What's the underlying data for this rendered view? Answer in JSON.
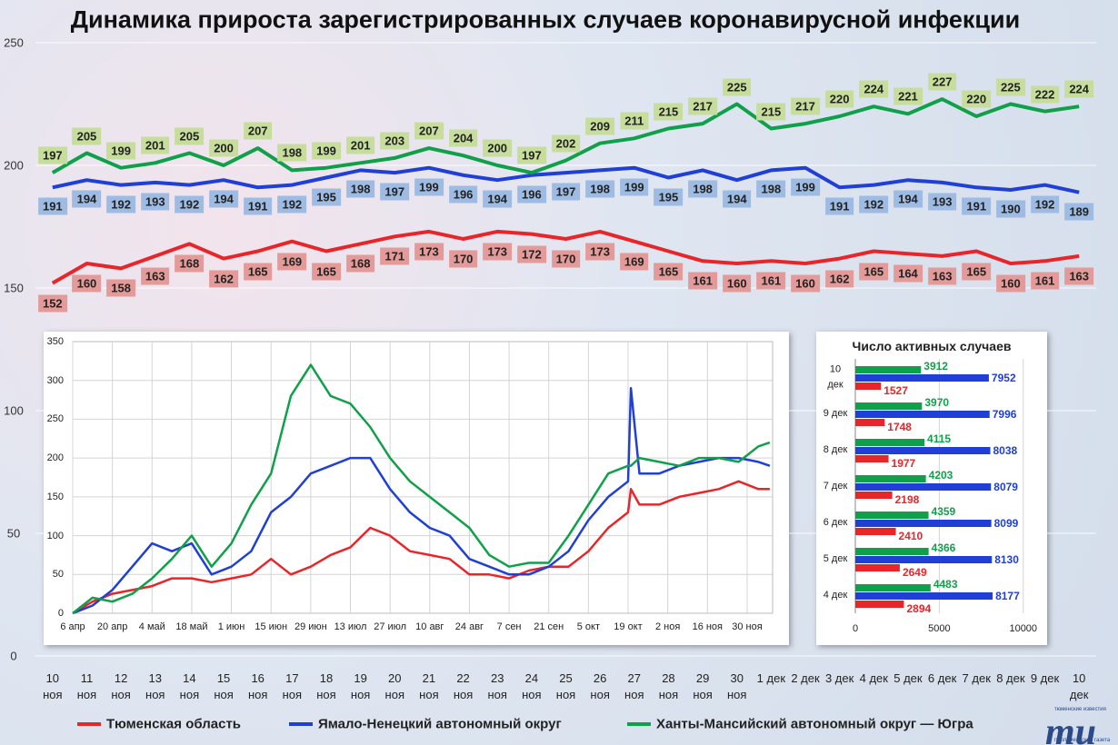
{
  "chart_data": [
    {
      "type": "line",
      "title": "Динамика прироста зарегистрированных случаев коронавирусной инфекции",
      "categories": [
        "10 ноя",
        "11 ноя",
        "12 ноя",
        "13 ноя",
        "14 ноя",
        "15 ноя",
        "16 ноя",
        "17 ноя",
        "18 ноя",
        "19 ноя",
        "20 ноя",
        "21 ноя",
        "22 ноя",
        "23 ноя",
        "24 ноя",
        "25 ноя",
        "26 ноя",
        "27 ноя",
        "28 ноя",
        "29 ноя",
        "30 ноя",
        "1 дек",
        "2 дек",
        "3 дек",
        "4 дек",
        "5 дек",
        "6 дек",
        "7 дек",
        "8 дек",
        "9 дек",
        "10 дек"
      ],
      "series": [
        {
          "name": "Тюменская область",
          "color": "#e8262a",
          "label_color": "#e39a98",
          "values": [
            152,
            160,
            158,
            163,
            168,
            162,
            165,
            169,
            165,
            168,
            171,
            173,
            170,
            173,
            172,
            170,
            173,
            169,
            165,
            161,
            160,
            161,
            160,
            162,
            165,
            164,
            163,
            165,
            160,
            161,
            163
          ]
        },
        {
          "name": "Ямало-Ненецкий автономный округ",
          "color": "#1f3fd6",
          "label_color": "#9dbbe3",
          "values": [
            191,
            194,
            192,
            193,
            192,
            194,
            191,
            192,
            195,
            198,
            197,
            199,
            196,
            194,
            196,
            197,
            198,
            199,
            195,
            198,
            194,
            198,
            199,
            191,
            192,
            194,
            193,
            191,
            190,
            192,
            189
          ]
        },
        {
          "name": "Ханты-Мансийский автономный округ — Югра",
          "color": "#11a04a",
          "label_color": "#c7dd9c",
          "values": [
            197,
            205,
            199,
            201,
            205,
            200,
            207,
            198,
            199,
            201,
            203,
            207,
            204,
            200,
            197,
            202,
            209,
            211,
            215,
            217,
            225,
            215,
            217,
            220,
            224,
            221,
            227,
            220,
            225,
            222,
            224
          ]
        }
      ],
      "ylim": [
        0,
        250
      ],
      "yticks": [
        0,
        50,
        100,
        150,
        200,
        250
      ],
      "grid": true
    },
    {
      "type": "line",
      "x": [
        0,
        7,
        14,
        21,
        28,
        35,
        42,
        49,
        56,
        63,
        70,
        77,
        84,
        91,
        98,
        105,
        112,
        119,
        126,
        133,
        140,
        147,
        154,
        161,
        168,
        175,
        182,
        189,
        196,
        197,
        200,
        207,
        214,
        221,
        228,
        235,
        242,
        246
      ],
      "series": [
        {
          "color": "#e8262a",
          "values": [
            0,
            15,
            25,
            30,
            35,
            45,
            45,
            40,
            45,
            50,
            70,
            50,
            60,
            75,
            85,
            110,
            100,
            80,
            75,
            70,
            50,
            50,
            45,
            55,
            60,
            60,
            80,
            110,
            130,
            160,
            140,
            140,
            150,
            155,
            160,
            170,
            160,
            160
          ]
        },
        {
          "color": "#1f3fd6",
          "values": [
            0,
            10,
            30,
            60,
            90,
            80,
            90,
            50,
            60,
            80,
            130,
            150,
            180,
            190,
            200,
            200,
            160,
            130,
            110,
            100,
            70,
            60,
            50,
            50,
            60,
            80,
            120,
            150,
            170,
            290,
            180,
            180,
            190,
            195,
            200,
            200,
            195,
            190
          ]
        },
        {
          "color": "#11a04a",
          "values": [
            0,
            20,
            15,
            25,
            45,
            70,
            100,
            60,
            90,
            140,
            180,
            280,
            320,
            280,
            270,
            240,
            200,
            170,
            150,
            130,
            110,
            75,
            60,
            65,
            65,
            100,
            140,
            180,
            190,
            190,
            200,
            195,
            190,
            200,
            200,
            195,
            215,
            220
          ]
        }
      ],
      "xlim": [
        0,
        247
      ],
      "xticks": [
        {
          "value": 0,
          "label": "6 апр"
        },
        {
          "value": 14,
          "label": "20 апр"
        },
        {
          "value": 28,
          "label": "4 май"
        },
        {
          "value": 42,
          "label": "18 май"
        },
        {
          "value": 56,
          "label": "1 июн"
        },
        {
          "value": 70,
          "label": "15 июн"
        },
        {
          "value": 84,
          "label": "29 июн"
        },
        {
          "value": 98,
          "label": "13 июл"
        },
        {
          "value": 112,
          "label": "27 июл"
        },
        {
          "value": 126,
          "label": "10 авг"
        },
        {
          "value": 140,
          "label": "24 авг"
        },
        {
          "value": 154,
          "label": "7 сен"
        },
        {
          "value": 168,
          "label": "21 сен"
        },
        {
          "value": 182,
          "label": "5 окт"
        },
        {
          "value": 196,
          "label": "19 окт"
        },
        {
          "value": 210,
          "label": "2 ноя"
        },
        {
          "value": 224,
          "label": "16 ноя"
        },
        {
          "value": 238,
          "label": "30 ноя"
        }
      ],
      "ylim": [
        0,
        350
      ],
      "yticks": [
        0,
        50,
        100,
        150,
        200,
        250,
        300,
        350
      ],
      "grid": true
    },
    {
      "type": "bar",
      "orientation": "horizontal",
      "title": "Число активных случаев",
      "categories": [
        "10 дек",
        "9 дек",
        "8 дек",
        "7 дек",
        "6 дек",
        "5 дек",
        "4 дек"
      ],
      "series": [
        {
          "color": "#11a04a",
          "values": [
            3912,
            3970,
            4115,
            4203,
            4359,
            4366,
            4483
          ]
        },
        {
          "color": "#1f3fd6",
          "values": [
            7952,
            7996,
            8038,
            8079,
            8099,
            8130,
            8177
          ]
        },
        {
          "color": "#e8262a",
          "values": [
            1527,
            1748,
            1977,
            2198,
            2410,
            2649,
            2894
          ]
        }
      ],
      "xlim": [
        0,
        10500
      ],
      "xticks": [
        0,
        5000,
        10000
      ],
      "grid": true
    }
  ],
  "logo": {
    "mark": "mu",
    "top": "тюменские известия",
    "bottom": "парламентская газета"
  }
}
